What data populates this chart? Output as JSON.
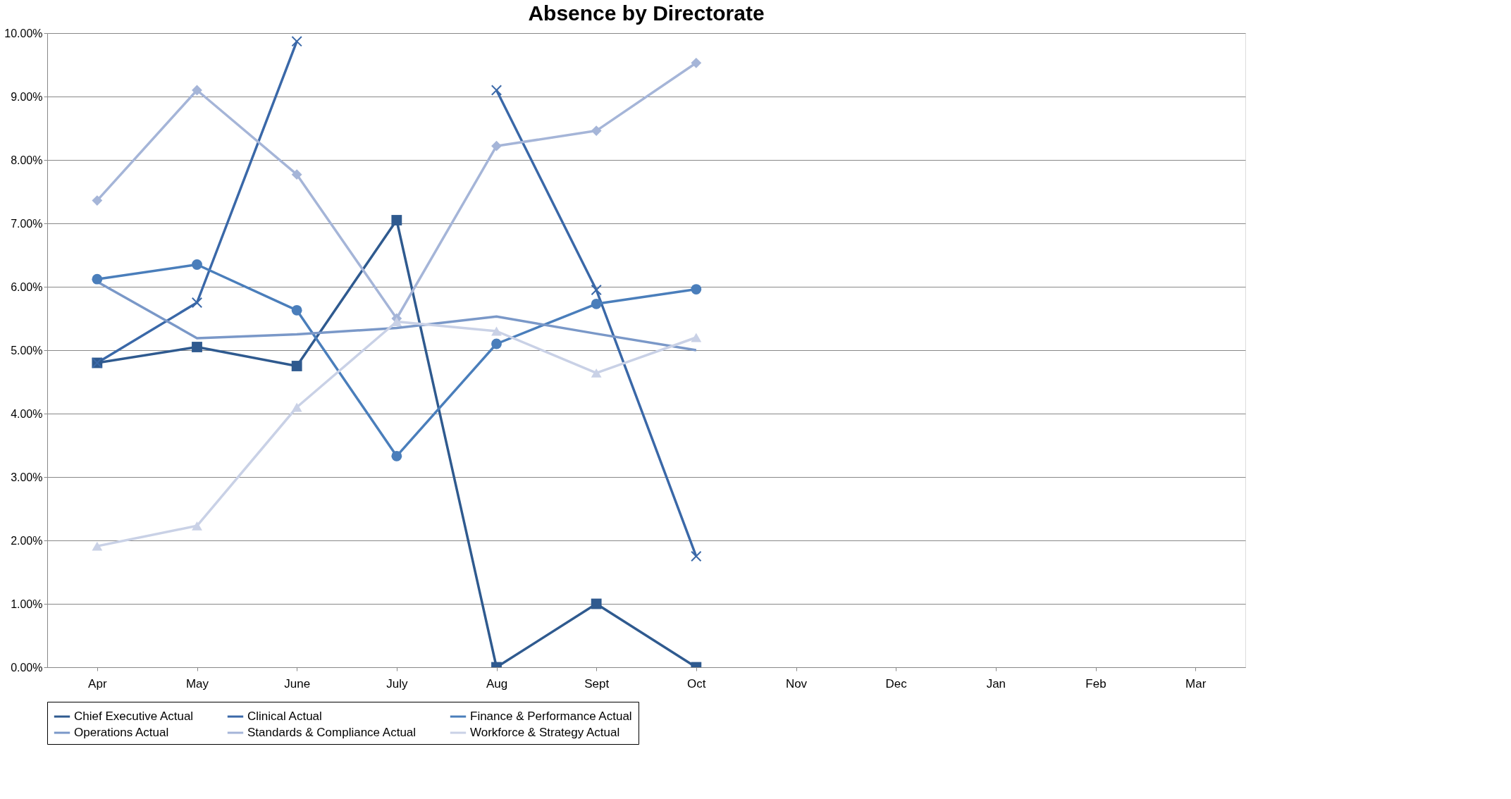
{
  "chart_data": {
    "type": "line",
    "title": "Absence by Directorate",
    "categories": [
      "Apr",
      "May",
      "June",
      "July",
      "Aug",
      "Sept",
      "Oct",
      "Nov",
      "Dec",
      "Jan",
      "Feb",
      "Mar"
    ],
    "series": [
      {
        "name": "Chief Executive Actual",
        "color": "#2f5a8f",
        "marker": "square",
        "values": [
          4.8,
          5.05,
          4.75,
          7.05,
          0,
          1.0,
          0,
          null,
          null,
          null,
          null,
          null
        ]
      },
      {
        "name": "Clinical  Actual",
        "color": "#3a68a8",
        "marker": "cross",
        "values": [
          4.8,
          5.75,
          9.87,
          null,
          9.1,
          5.95,
          1.75,
          null,
          null,
          null,
          null,
          null
        ]
      },
      {
        "name": "Finance & Performance Actual",
        "color": "#4a7ebb",
        "marker": "circle",
        "values": [
          6.12,
          6.35,
          5.63,
          3.33,
          5.1,
          5.73,
          5.96,
          null,
          null,
          null,
          null,
          null
        ]
      },
      {
        "name": "Operations   Actual",
        "color": "#7a98c8",
        "marker": "none",
        "values": [
          6.08,
          5.19,
          5.25,
          5.35,
          5.53,
          5.26,
          5.0,
          null,
          null,
          null,
          null,
          null
        ]
      },
      {
        "name": "Standards & Compliance Actual",
        "color": "#a5b5d8",
        "marker": "diamond",
        "values": [
          7.36,
          9.1,
          7.77,
          5.5,
          8.22,
          8.46,
          9.53,
          null,
          null,
          null,
          null,
          null
        ]
      },
      {
        "name": "Workforce & Strategy Actual",
        "color": "#c9d1e6",
        "marker": "triangle",
        "values": [
          1.91,
          2.23,
          4.1,
          5.45,
          5.3,
          4.64,
          5.2,
          null,
          null,
          null,
          null,
          null
        ]
      }
    ],
    "ylim": [
      0,
      10
    ],
    "yticks": [
      {
        "value": 0,
        "label": "0.00%"
      },
      {
        "value": 1,
        "label": "1.00%"
      },
      {
        "value": 2,
        "label": "2.00%"
      },
      {
        "value": 3,
        "label": "3.00%"
      },
      {
        "value": 4,
        "label": "4.00%"
      },
      {
        "value": 5,
        "label": "5.00%"
      },
      {
        "value": 6,
        "label": "6.00%"
      },
      {
        "value": 7,
        "label": "7.00%"
      },
      {
        "value": 8,
        "label": "8.00%"
      },
      {
        "value": 9,
        "label": "9.00%"
      },
      {
        "value": 10,
        "label": "10.00%"
      }
    ],
    "grid": "y",
    "legend": "bottom",
    "line_style": "solid"
  }
}
